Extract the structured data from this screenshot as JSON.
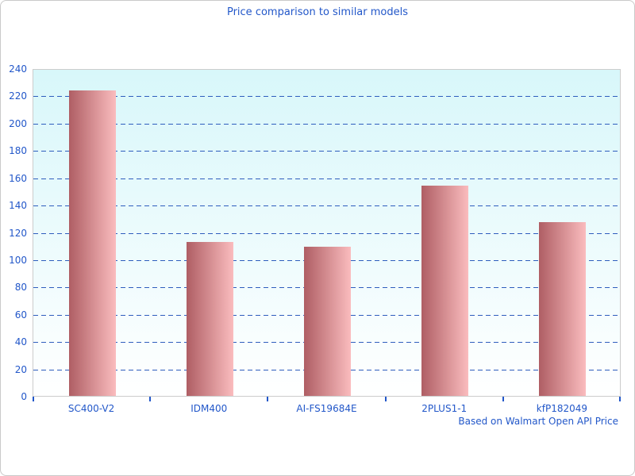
{
  "colors": {
    "text_blue": "#2257c9",
    "gridline_blue": "#2e5dbd",
    "plot_border": "#cccccc",
    "outer_border": "#c9c9c9",
    "plot_bg_top": "#d8f7fa",
    "plot_bg_bottom": "#ffffff",
    "bar_gradient_left": "#af5e64",
    "bar_gradient_right": "#fabcbe"
  },
  "chart_data": {
    "type": "bar",
    "title": "Price comparison to similar models",
    "categories": [
      "SC400-V2",
      "IDM400",
      "AI-FS19684E",
      "2PLUS1-1",
      "kfP182049"
    ],
    "values": [
      224,
      113,
      109,
      154,
      127
    ],
    "xlabel": "",
    "ylabel": "",
    "ylim": [
      0,
      240
    ],
    "ytick_step": 20,
    "grid": "horizontal-dashed",
    "legend_position": "none",
    "annotation": "Based on Walmart Open API Price"
  }
}
